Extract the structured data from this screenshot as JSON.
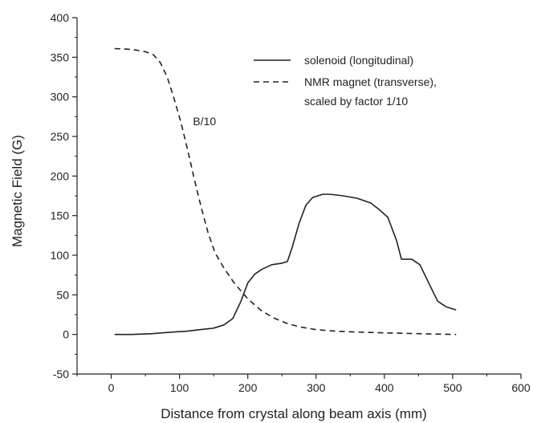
{
  "chart_data": {
    "type": "line",
    "xlabel": "Distance from crystal along beam axis (mm)",
    "ylabel": "Magnetic Field (G)",
    "xlim": [
      -50,
      600
    ],
    "ylim": [
      -50,
      400
    ],
    "x_ticks": [
      0,
      100,
      200,
      300,
      400,
      500,
      600
    ],
    "y_ticks": [
      -50,
      0,
      50,
      100,
      150,
      200,
      250,
      300,
      350,
      400
    ],
    "grid": false,
    "legend_position": "top-right",
    "series": [
      {
        "name": "solenoid (longitudinal)",
        "style": "solid",
        "x": [
          5,
          30,
          60,
          90,
          110,
          130,
          150,
          165,
          178,
          190,
          200,
          210,
          220,
          235,
          250,
          258,
          265,
          275,
          285,
          295,
          310,
          320,
          340,
          360,
          380,
          392,
          405,
          418,
          425,
          440,
          452,
          465,
          478,
          490,
          505
        ],
        "y": [
          0,
          0,
          1,
          3,
          4,
          6,
          8,
          12,
          20,
          42,
          65,
          76,
          82,
          88,
          90,
          92,
          110,
          140,
          163,
          173,
          177,
          177,
          175,
          172,
          166,
          158,
          148,
          118,
          95,
          95,
          88,
          65,
          42,
          35,
          31
        ]
      },
      {
        "name": "NMR magnet (transverse),\nscaled by factor 1/10",
        "style": "dashed",
        "x": [
          5,
          30,
          50,
          62,
          72,
          82,
          92,
          102,
          112,
          122,
          132,
          142,
          152,
          165,
          180,
          200,
          220,
          240,
          260,
          280,
          300,
          330,
          360,
          400,
          450,
          505
        ],
        "y": [
          361,
          360,
          357,
          353,
          343,
          325,
          298,
          268,
          233,
          195,
          160,
          128,
          103,
          84,
          65,
          45,
          30,
          20,
          13,
          9,
          6,
          4,
          3,
          2,
          1,
          0
        ]
      }
    ],
    "legend": [
      "solenoid (longitudinal)",
      "NMR magnet (transverse),",
      "scaled by factor 1/10"
    ],
    "annotations": [
      {
        "text": "B/10",
        "x": 115,
        "y": 264
      }
    ]
  }
}
